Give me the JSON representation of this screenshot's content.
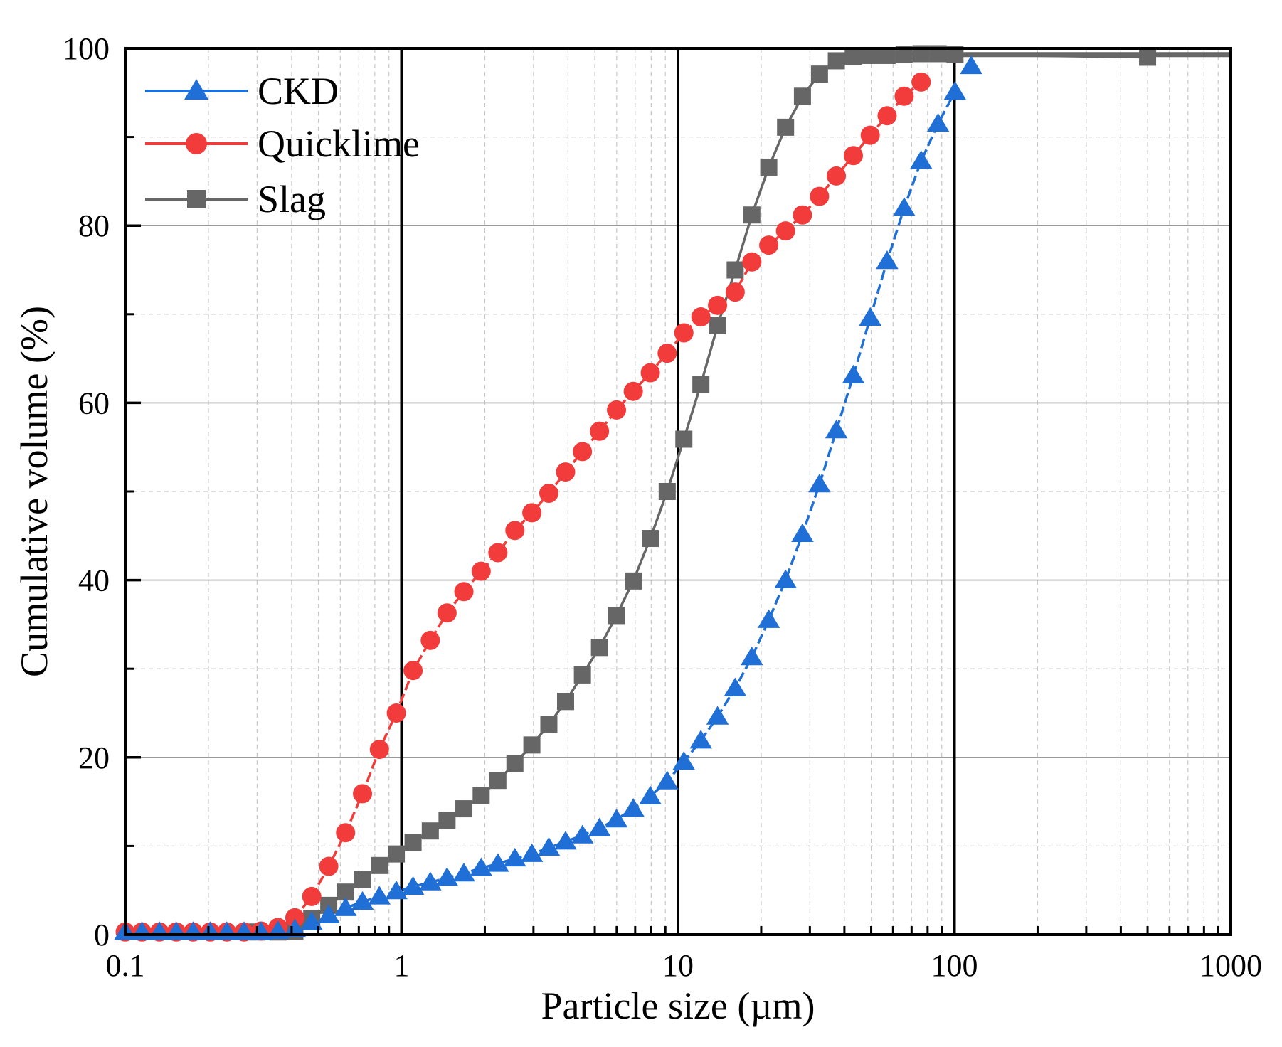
{
  "chart_data": {
    "type": "line",
    "title": "",
    "xlabel": "Particle size (µm)",
    "ylabel": "Cumulative volume (%)",
    "x_scale": "log",
    "xlim": [
      0.1,
      1000
    ],
    "ylim": [
      0,
      100
    ],
    "x_ticks": [
      0.1,
      1,
      10,
      100,
      1000
    ],
    "x_tick_labels": [
      "0.1",
      "1",
      "10",
      "100",
      "1000"
    ],
    "y_ticks": [
      0,
      20,
      40,
      60,
      80,
      100
    ],
    "y_tick_labels": [
      "0",
      "20",
      "40",
      "60",
      "80",
      "100"
    ],
    "grid": true,
    "legend_position": "top-left",
    "series": [
      {
        "name": "CKD",
        "color": "#1f6fd6",
        "marker": "triangle",
        "x": [
          0.1,
          0.115,
          0.133,
          0.153,
          0.176,
          0.203,
          0.233,
          0.269,
          0.31,
          0.357,
          0.411,
          0.473,
          0.545,
          0.627,
          0.722,
          0.831,
          0.957,
          1.1,
          1.27,
          1.46,
          1.68,
          1.94,
          2.23,
          2.57,
          2.96,
          3.41,
          3.92,
          4.51,
          5.2,
          5.99,
          6.89,
          7.94,
          9.14,
          10.5,
          12.1,
          13.9,
          16.1,
          18.5,
          21.3,
          24.5,
          28.2,
          32.5,
          37.4,
          43.1,
          49.6,
          57.1,
          65.8,
          75.8,
          87.3,
          100.5
        ],
        "y": [
          0.3,
          0.3,
          0.3,
          0.3,
          0.3,
          0.3,
          0.3,
          0.3,
          0.3,
          0.4,
          0.6,
          1.4,
          2.2,
          3.0,
          3.7,
          4.3,
          4.9,
          5.4,
          5.9,
          6.4,
          6.9,
          7.5,
          8.0,
          8.6,
          9.1,
          9.8,
          10.5,
          11.2,
          12.0,
          13.0,
          14.2,
          15.6,
          17.3,
          19.5,
          21.9,
          24.6,
          27.8,
          31.3,
          35.5,
          40.0,
          45.2,
          50.8,
          56.9,
          63.1,
          69.6,
          76.0,
          82.0,
          87.3,
          91.5,
          95.1
        ]
      },
      {
        "name": "Quicklime",
        "color": "#f23b3b",
        "marker": "circle",
        "x": [
          0.1,
          0.115,
          0.133,
          0.153,
          0.176,
          0.203,
          0.233,
          0.269,
          0.31,
          0.357,
          0.411,
          0.473,
          0.545,
          0.627,
          0.722,
          0.831,
          0.957,
          1.1,
          1.27,
          1.46,
          1.68,
          1.94,
          2.23,
          2.57,
          2.96,
          3.41,
          3.92,
          4.51,
          5.2,
          5.99,
          6.89,
          7.94,
          9.14,
          10.5,
          12.1,
          13.9,
          16.1,
          18.5,
          21.3,
          24.5,
          28.2,
          32.5,
          37.4,
          43.1,
          49.6,
          57.1,
          65.8,
          75.8
        ],
        "y": [
          0.3,
          0.3,
          0.3,
          0.3,
          0.3,
          0.3,
          0.3,
          0.3,
          0.4,
          0.8,
          1.9,
          4.3,
          7.7,
          11.5,
          15.9,
          20.9,
          25.0,
          29.8,
          33.2,
          36.3,
          38.7,
          41.0,
          43.1,
          45.6,
          47.6,
          49.8,
          52.2,
          54.5,
          56.8,
          59.2,
          61.3,
          63.4,
          65.6,
          67.9,
          69.7,
          71.0,
          72.5,
          75.9,
          77.8,
          79.4,
          81.2,
          83.3,
          85.6,
          87.9,
          90.2,
          92.4,
          94.6,
          96.2
        ]
      },
      {
        "name": "Slag",
        "color": "#666666",
        "marker": "square",
        "x": [
          0.3,
          0.357,
          0.411,
          0.473,
          0.545,
          0.627,
          0.722,
          0.831,
          0.957,
          1.1,
          1.27,
          1.46,
          1.68,
          1.94,
          2.23,
          2.57,
          2.96,
          3.41,
          3.92,
          4.51,
          5.2,
          5.99,
          6.89,
          7.94,
          9.14,
          10.5,
          12.1,
          13.9,
          16.1,
          18.5,
          21.3,
          24.5,
          28.2,
          32.5,
          37.4,
          43.1,
          49.6,
          57.1,
          65.8,
          75.8,
          87.3,
          100.5,
          500
        ],
        "y": [
          0.3,
          0.3,
          0.4,
          1.8,
          3.3,
          4.8,
          6.2,
          7.8,
          9.1,
          10.4,
          11.7,
          12.9,
          14.2,
          15.7,
          17.4,
          19.3,
          21.4,
          23.7,
          26.3,
          29.3,
          32.4,
          36.0,
          39.9,
          44.7,
          50.0,
          55.9,
          62.1,
          68.7,
          75.0,
          81.2,
          86.6,
          91.1,
          94.6,
          97.1,
          98.6,
          99.1,
          99.2,
          99.2,
          99.3,
          99.4,
          99.4,
          99.3,
          99.0
        ]
      }
    ]
  },
  "legend": [
    {
      "label": "CKD"
    },
    {
      "label": "Quicklime"
    },
    {
      "label": "Slag"
    }
  ]
}
